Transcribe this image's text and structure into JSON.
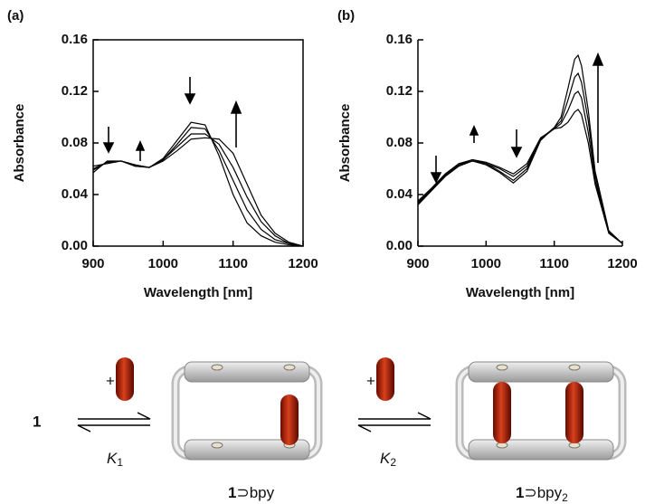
{
  "chart_data": [
    {
      "type": "line",
      "label": "(a)",
      "x_label": "Wavelength [nm]",
      "y_label": "Absorbance",
      "box": true,
      "x": [
        900,
        920,
        940,
        960,
        980,
        1000,
        1020,
        1040,
        1060,
        1080,
        1100,
        1120,
        1140,
        1160,
        1180,
        1200
      ],
      "series": [
        {
          "color": "#000000",
          "values": [
            0.057,
            0.066,
            0.066,
            0.062,
            0.061,
            0.068,
            0.082,
            0.096,
            0.094,
            0.07,
            0.04,
            0.018,
            0.008,
            0.003,
            0.001,
            0.0
          ]
        },
        {
          "color": "#000000",
          "values": [
            0.059,
            0.065,
            0.066,
            0.062,
            0.061,
            0.067,
            0.079,
            0.092,
            0.091,
            0.074,
            0.051,
            0.028,
            0.013,
            0.005,
            0.002,
            0.0
          ]
        },
        {
          "color": "#000000",
          "values": [
            0.06,
            0.065,
            0.066,
            0.063,
            0.061,
            0.067,
            0.077,
            0.087,
            0.087,
            0.079,
            0.061,
            0.038,
            0.019,
            0.008,
            0.002,
            0.0
          ]
        },
        {
          "color": "#000000",
          "values": [
            0.062,
            0.064,
            0.066,
            0.063,
            0.061,
            0.066,
            0.074,
            0.083,
            0.084,
            0.083,
            0.072,
            0.048,
            0.024,
            0.01,
            0.003,
            0.0
          ]
        }
      ],
      "xlim": [
        900,
        1200
      ],
      "xticks": [
        900,
        1000,
        1100,
        1200
      ],
      "ylim": [
        0,
        0.16
      ],
      "yticks": [
        {
          "value": 0,
          "label": "0.00"
        },
        0.04,
        0.08,
        0.12,
        0.16
      ]
    },
    {
      "type": "line",
      "label": "(b)",
      "x_label": "Wavelength [nm]",
      "y_label": "Absorbance",
      "box": false,
      "x": [
        900,
        920,
        940,
        960,
        980,
        1000,
        1020,
        1040,
        1060,
        1080,
        1100,
        1110,
        1120,
        1130,
        1135,
        1140,
        1150,
        1160,
        1180,
        1200
      ],
      "series": [
        {
          "color": "#000000",
          "values": [
            0.035,
            0.045,
            0.056,
            0.064,
            0.067,
            0.065,
            0.061,
            0.056,
            0.064,
            0.084,
            0.091,
            0.092,
            0.096,
            0.104,
            0.106,
            0.102,
            0.08,
            0.048,
            0.01,
            0.002
          ]
        },
        {
          "color": "#000000",
          "values": [
            0.034,
            0.044,
            0.055,
            0.063,
            0.067,
            0.064,
            0.06,
            0.054,
            0.062,
            0.083,
            0.091,
            0.095,
            0.105,
            0.118,
            0.12,
            0.115,
            0.088,
            0.051,
            0.011,
            0.002
          ]
        },
        {
          "color": "#000000",
          "values": [
            0.033,
            0.044,
            0.055,
            0.063,
            0.066,
            0.064,
            0.058,
            0.051,
            0.06,
            0.083,
            0.092,
            0.097,
            0.113,
            0.131,
            0.134,
            0.127,
            0.097,
            0.055,
            0.011,
            0.002
          ]
        },
        {
          "color": "#000000",
          "values": [
            0.032,
            0.043,
            0.054,
            0.062,
            0.066,
            0.063,
            0.057,
            0.049,
            0.058,
            0.082,
            0.092,
            0.1,
            0.122,
            0.145,
            0.148,
            0.14,
            0.105,
            0.058,
            0.012,
            0.002
          ]
        }
      ],
      "xlim": [
        900,
        1200
      ],
      "xticks": [
        900,
        1000,
        1100,
        1200
      ],
      "ylim": [
        0,
        0.16
      ],
      "yticks": [
        {
          "value": 0,
          "label": "0.00"
        },
        0.04,
        0.08,
        0.12,
        0.16
      ]
    }
  ],
  "scheme": {
    "compound": "1",
    "plus": "+",
    "k1": {
      "symbol": "K",
      "sub": "1"
    },
    "k2": {
      "symbol": "K",
      "sub": "2"
    },
    "product1": {
      "bold": "1",
      "rest": "⊃bpy"
    },
    "product2": {
      "bold": "1",
      "rest": "⊃bpy",
      "sub": "2"
    }
  }
}
